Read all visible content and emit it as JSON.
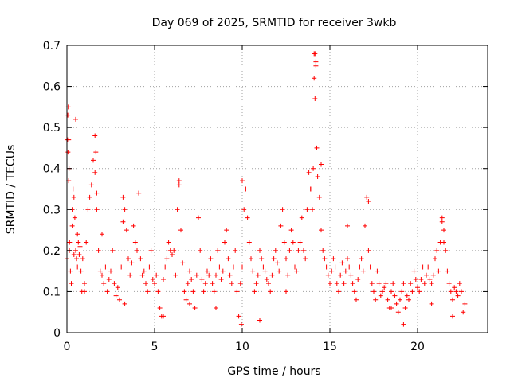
{
  "chart_data": {
    "type": "scatter",
    "title": "Day 069 of 2025, SRMTID for receiver 3wkb",
    "xlabel": "GPS time / hours",
    "ylabel": "SRMTID / TECUs",
    "xlim": [
      0,
      24
    ],
    "ylim": [
      0,
      0.7
    ],
    "xticks": [
      0,
      5,
      10,
      15,
      20
    ],
    "xtick_labels": [
      "0",
      "5",
      "10",
      "15",
      "20"
    ],
    "yticks": [
      0,
      0.1,
      0.2,
      0.3,
      0.4,
      0.5,
      0.6,
      0.7
    ],
    "ytick_labels": [
      "0",
      "0.1",
      "0.2",
      "0.3",
      "0.4",
      "0.5",
      "0.6",
      "0.7"
    ],
    "grid": true,
    "marker": "+",
    "marker_color": "#ff0000",
    "series": [
      {
        "name": "SRMTID",
        "x": [
          0.0,
          0.05,
          0.08,
          0.1,
          0.12,
          0.15,
          0.2,
          0.25,
          0.3,
          0.35,
          0.4,
          0.45,
          0.5,
          0.55,
          0.6,
          0.65,
          0.7,
          0.75,
          0.8,
          0.85,
          0.9,
          1.0,
          1.1,
          1.2,
          1.3,
          1.4,
          1.5,
          1.6,
          1.65,
          1.7,
          1.8,
          1.9,
          2.0,
          2.1,
          2.2,
          2.3,
          2.4,
          2.5,
          2.6,
          2.7,
          2.8,
          2.9,
          3.0,
          3.1,
          3.2,
          3.3,
          3.4,
          3.5,
          3.6,
          3.7,
          3.8,
          3.9,
          4.0,
          4.1,
          4.2,
          4.3,
          4.4,
          4.5,
          4.6,
          4.7,
          4.8,
          4.9,
          5.0,
          5.1,
          5.2,
          5.3,
          5.4,
          5.5,
          5.6,
          5.7,
          5.8,
          5.9,
          6.0,
          6.1,
          6.2,
          6.3,
          6.4,
          6.5,
          6.6,
          6.7,
          6.8,
          6.9,
          7.0,
          7.1,
          7.2,
          7.3,
          7.4,
          7.5,
          7.6,
          7.7,
          7.8,
          7.9,
          8.0,
          8.1,
          8.2,
          8.3,
          8.4,
          8.5,
          8.6,
          8.7,
          8.8,
          8.9,
          9.0,
          9.1,
          9.2,
          9.3,
          9.4,
          9.5,
          9.6,
          9.7,
          9.8,
          9.9,
          10.0,
          10.1,
          10.2,
          10.3,
          10.4,
          10.5,
          10.6,
          10.7,
          10.8,
          10.9,
          11.0,
          11.1,
          11.2,
          11.3,
          11.4,
          11.5,
          11.6,
          11.7,
          11.8,
          11.9,
          12.0,
          12.1,
          12.2,
          12.3,
          12.4,
          12.5,
          12.6,
          12.7,
          12.8,
          12.9,
          13.0,
          13.1,
          13.2,
          13.3,
          13.4,
          13.5,
          13.6,
          13.7,
          13.8,
          13.9,
          14.0,
          14.05,
          14.1,
          14.15,
          14.2,
          14.25,
          14.3,
          14.4,
          14.5,
          14.6,
          14.7,
          14.8,
          14.9,
          15.0,
          15.1,
          15.2,
          15.3,
          15.4,
          15.5,
          15.6,
          15.7,
          15.8,
          15.9,
          16.0,
          16.1,
          16.2,
          16.3,
          16.4,
          16.5,
          16.6,
          16.7,
          16.8,
          16.9,
          17.0,
          17.1,
          17.2,
          17.3,
          17.4,
          17.5,
          17.6,
          17.7,
          17.8,
          17.9,
          18.0,
          18.1,
          18.2,
          18.3,
          18.4,
          18.5,
          18.6,
          18.7,
          18.8,
          18.9,
          19.0,
          19.1,
          19.2,
          19.3,
          19.4,
          19.5,
          19.6,
          19.7,
          19.8,
          19.9,
          20.0,
          20.1,
          20.2,
          20.3,
          20.4,
          20.5,
          20.6,
          20.7,
          20.8,
          20.9,
          21.0,
          21.1,
          21.2,
          21.3,
          21.4,
          21.5,
          21.6,
          21.7,
          21.8,
          21.9,
          22.0,
          22.1,
          22.2,
          22.3,
          22.4,
          22.5,
          22.6,
          22.7,
          0.02,
          0.06,
          0.1,
          0.14,
          0.3,
          0.5,
          1.6,
          1.7,
          3.2,
          4.1,
          6.4,
          9.95,
          10.0,
          13.9,
          14.1,
          14.2,
          14.15,
          14.5,
          17.2,
          21.4,
          21.5,
          0.4,
          0.6,
          1.0,
          2.0,
          3.3,
          5.5,
          7.0,
          8.5,
          11.0,
          12.5,
          16.0,
          18.5,
          19.2,
          20.8,
          22.0
        ],
        "y": [
          0.18,
          0.53,
          0.55,
          0.47,
          0.4,
          0.22,
          0.15,
          0.12,
          0.3,
          0.35,
          0.33,
          0.28,
          0.2,
          0.18,
          0.16,
          0.22,
          0.19,
          0.21,
          0.15,
          0.1,
          0.18,
          0.12,
          0.22,
          0.3,
          0.33,
          0.36,
          0.42,
          0.48,
          0.44,
          0.3,
          0.2,
          0.15,
          0.14,
          0.12,
          0.16,
          0.1,
          0.13,
          0.15,
          0.2,
          0.12,
          0.09,
          0.11,
          0.08,
          0.16,
          0.33,
          0.3,
          0.25,
          0.18,
          0.14,
          0.17,
          0.26,
          0.22,
          0.2,
          0.34,
          0.18,
          0.14,
          0.15,
          0.12,
          0.1,
          0.16,
          0.2,
          0.13,
          0.12,
          0.14,
          0.1,
          0.06,
          0.04,
          0.13,
          0.16,
          0.18,
          0.22,
          0.2,
          0.19,
          0.2,
          0.14,
          0.3,
          0.36,
          0.25,
          0.17,
          0.1,
          0.08,
          0.12,
          0.15,
          0.13,
          0.1,
          0.06,
          0.14,
          0.28,
          0.2,
          0.13,
          0.1,
          0.12,
          0.15,
          0.14,
          0.18,
          0.12,
          0.1,
          0.14,
          0.2,
          0.16,
          0.13,
          0.15,
          0.22,
          0.25,
          0.18,
          0.14,
          0.12,
          0.16,
          0.2,
          0.1,
          0.04,
          0.12,
          0.16,
          0.3,
          0.35,
          0.28,
          0.22,
          0.18,
          0.15,
          0.1,
          0.12,
          0.14,
          0.2,
          0.18,
          0.16,
          0.15,
          0.13,
          0.12,
          0.1,
          0.14,
          0.18,
          0.2,
          0.17,
          0.15,
          0.26,
          0.3,
          0.22,
          0.18,
          0.14,
          0.2,
          0.25,
          0.22,
          0.16,
          0.15,
          0.2,
          0.22,
          0.28,
          0.2,
          0.18,
          0.3,
          0.39,
          0.35,
          0.3,
          0.4,
          0.62,
          0.68,
          0.65,
          0.45,
          0.38,
          0.33,
          0.25,
          0.2,
          0.18,
          0.16,
          0.14,
          0.12,
          0.15,
          0.18,
          0.16,
          0.12,
          0.1,
          0.14,
          0.17,
          0.12,
          0.15,
          0.18,
          0.16,
          0.14,
          0.12,
          0.1,
          0.08,
          0.13,
          0.16,
          0.18,
          0.15,
          0.26,
          0.33,
          0.2,
          0.16,
          0.12,
          0.1,
          0.08,
          0.15,
          0.12,
          0.09,
          0.1,
          0.11,
          0.12,
          0.08,
          0.06,
          0.1,
          0.12,
          0.09,
          0.07,
          0.05,
          0.08,
          0.1,
          0.12,
          0.06,
          0.09,
          0.08,
          0.12,
          0.1,
          0.15,
          0.13,
          0.11,
          0.1,
          0.13,
          0.16,
          0.12,
          0.14,
          0.16,
          0.13,
          0.12,
          0.14,
          0.18,
          0.2,
          0.15,
          0.22,
          0.27,
          0.25,
          0.2,
          0.15,
          0.12,
          0.1,
          0.08,
          0.11,
          0.1,
          0.09,
          0.12,
          0.1,
          0.05,
          0.07,
          0.47,
          0.44,
          0.37,
          0.2,
          0.26,
          0.52,
          0.39,
          0.34,
          0.27,
          0.34,
          0.37,
          0.02,
          0.37,
          0.35,
          0.68,
          0.66,
          0.57,
          0.41,
          0.32,
          0.28,
          0.22,
          0.19,
          0.24,
          0.1,
          0.24,
          0.07,
          0.04,
          0.07,
          0.06,
          0.03,
          0.1,
          0.26,
          0.06,
          0.02,
          0.07,
          0.04
        ]
      }
    ]
  }
}
